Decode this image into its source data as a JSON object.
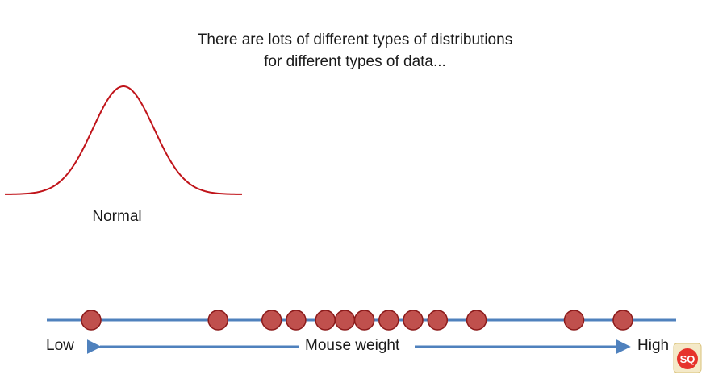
{
  "title": {
    "line1": "There are lots of different types of distributions",
    "line2": "for different types of data..."
  },
  "distribution": {
    "label": "Normal",
    "curve_color": "#c0141a"
  },
  "axis": {
    "low_label": "Low",
    "high_label": "High",
    "variable_label": "Mouse weight",
    "line_color": "#4f81bd",
    "arrow_color": "#4f81bd"
  },
  "points": {
    "color": "#c0504d",
    "stroke": "#8b1a1a",
    "values": [
      1,
      3.6,
      4.7,
      5.2,
      5.8,
      6.2,
      6.6,
      7.1,
      7.6,
      8.1,
      8.9,
      10.9,
      11.9
    ]
  },
  "logo": {
    "text": "SQ",
    "icon": "statquest-logo-icon"
  }
}
